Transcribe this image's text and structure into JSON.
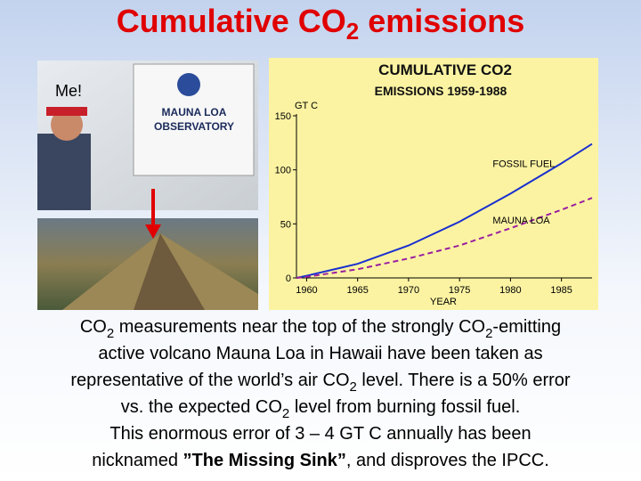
{
  "slide": {
    "title": [
      "Cumulative CO",
      "2",
      " emissions"
    ],
    "photo_caption": "Me!",
    "sign_lines": [
      "MAUNA LOA",
      "OBSERVATORY"
    ],
    "body": [
      [
        "CO",
        "2",
        " measurements near the top of the strongly CO",
        "2",
        "-emitting"
      ],
      [
        "active volcano Mauna Loa in Hawaii have been taken as"
      ],
      [
        "representative of the world’s air CO",
        "2",
        " level. There is a 50% error"
      ],
      [
        "vs. the expected CO",
        "2",
        " level from burning fossil fuel."
      ],
      [
        "This enormous error of 3 – 4 GT C annually has been"
      ],
      [
        "nicknamed ",
        "”The Missing Sink”",
        ", and disproves the IPCC."
      ]
    ]
  },
  "chart_data": {
    "type": "line",
    "title": "CUMULATIVE CO2",
    "subtitle": "EMISSIONS 1959-1988",
    "y_label": "GT C",
    "x_label": "YEAR",
    "x": [
      1959,
      1960,
      1965,
      1970,
      1975,
      1980,
      1985,
      1988
    ],
    "series": [
      {
        "name": "FOSSIL FUEL",
        "color": "#1a2fd0",
        "dash": false,
        "values": [
          0,
          2,
          13,
          30,
          52,
          78,
          106,
          124
        ]
      },
      {
        "name": "MAUNA LOA",
        "color": "#9a1fa0",
        "dash": true,
        "values": [
          0,
          1,
          8,
          18,
          30,
          46,
          63,
          74
        ]
      }
    ],
    "xlim": [
      1959,
      1988
    ],
    "ylim": [
      0,
      150
    ],
    "xticks": [
      1960,
      1965,
      1970,
      1975,
      1980,
      1985
    ],
    "yticks": [
      0,
      50,
      100,
      150
    ],
    "grid": false
  }
}
